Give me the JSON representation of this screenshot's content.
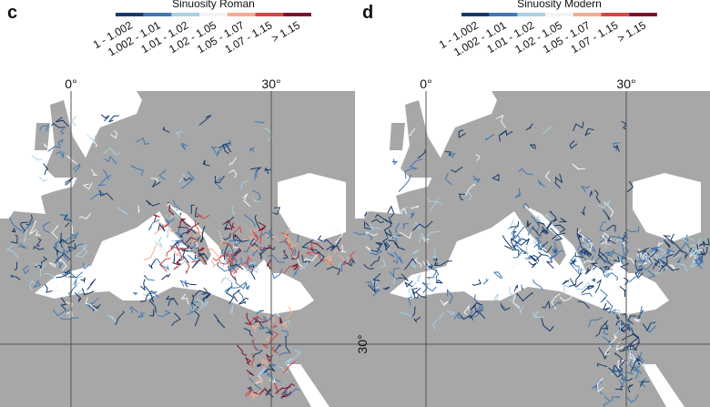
{
  "panels": [
    {
      "label": "c",
      "legend_title": "Sinuosity Roman",
      "legend": [
        {
          "label": "1 - 1.002",
          "color": "#163a6b"
        },
        {
          "label": "1.002 - 1.01",
          "color": "#4279b3"
        },
        {
          "label": "1.01 - 1.02",
          "color": "#a9d0e4"
        },
        {
          "label": "1.02 - 1.05",
          "color": "#f4f4f4"
        },
        {
          "label": "1.05 - 1.07",
          "color": "#f2ad8f"
        },
        {
          "label": "1.07 - 1.15",
          "color": "#cf4b47"
        },
        {
          "label": "> 1.15",
          "color": "#7a1430"
        }
      ],
      "lon_labels": [
        "0°",
        "30°"
      ],
      "lat_labels": []
    },
    {
      "label": "d",
      "legend_title": "Sinuosity Modern",
      "legend": [
        {
          "label": "1 - 1.002",
          "color": "#163a6b"
        },
        {
          "label": "1.002 - 1.01",
          "color": "#4279b3"
        },
        {
          "label": "1.01 - 1.02",
          "color": "#a9d0e4"
        },
        {
          "label": "1.02 - 1.05",
          "color": "#f4f4f4"
        },
        {
          "label": "1.05 - 1.07",
          "color": "#f2ad8f"
        },
        {
          "label": "1.07 - 1.15",
          "color": "#cf4b47"
        },
        {
          "label": "> 1.15",
          "color": "#7a1430"
        }
      ],
      "lon_labels": [
        "0°",
        "30°"
      ],
      "lat_labels": [
        "30°"
      ]
    }
  ]
}
